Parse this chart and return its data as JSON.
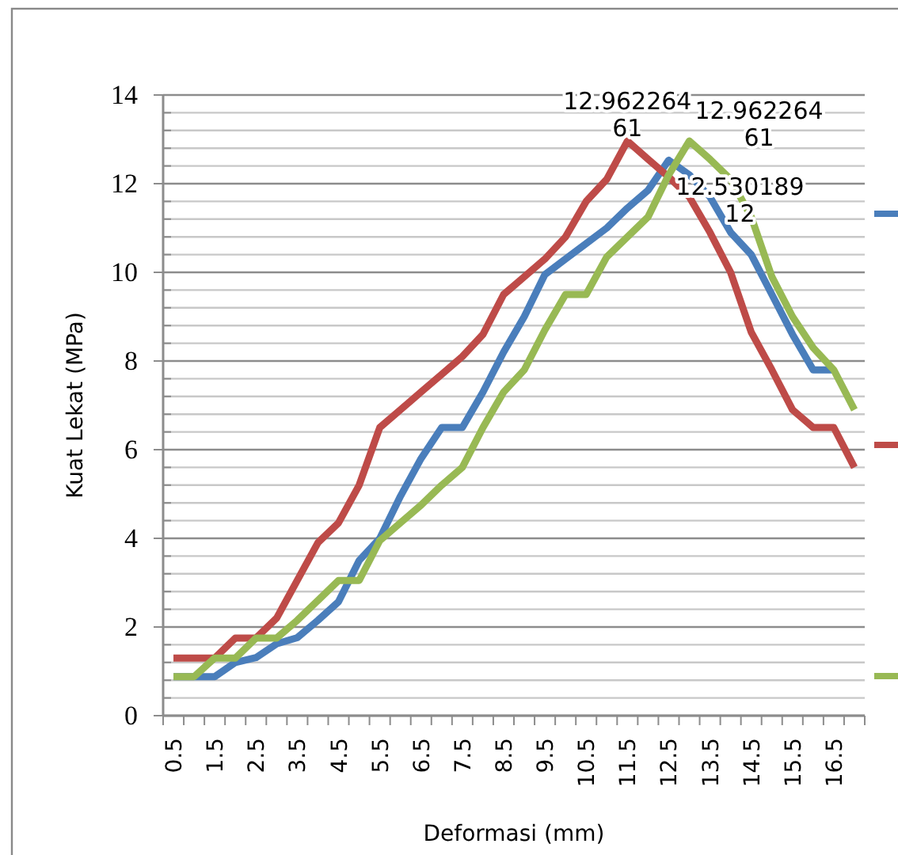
{
  "chart_data": {
    "type": "line",
    "xlabel": "Deformasi (mm)",
    "ylabel": "Kuat Lekat (MPa)",
    "categories": [
      "0.5",
      null,
      "1.5",
      null,
      "2.5",
      null,
      "3.5",
      null,
      "4.5",
      null,
      "5.5",
      null,
      "6.5",
      null,
      "7.5",
      null,
      "8.5",
      null,
      "9.5",
      null,
      "10.5",
      null,
      "11.5",
      null,
      "12.5",
      null,
      "13.5",
      null,
      "14.5",
      null,
      "15.5",
      null,
      "16.5",
      null
    ],
    "ylim": [
      0,
      14
    ],
    "yticks": [
      0,
      {
        "value": 0.4,
        "label": null
      },
      {
        "value": 0.8,
        "label": null
      },
      {
        "value": 1.2,
        "label": null
      },
      {
        "value": 1.6,
        "label": null
      },
      2,
      {
        "value": 2.4,
        "label": null
      },
      {
        "value": 2.8,
        "label": null
      },
      {
        "value": 3.2,
        "label": null
      },
      {
        "value": 3.6,
        "label": null
      },
      4,
      {
        "value": 4.4,
        "label": null
      },
      {
        "value": 4.8,
        "label": null
      },
      {
        "value": 5.2,
        "label": null
      },
      {
        "value": 5.6,
        "label": null
      },
      6,
      {
        "value": 6.4,
        "label": null
      },
      {
        "value": 6.8,
        "label": null
      },
      {
        "value": 7.2,
        "label": null
      },
      {
        "value": 7.6,
        "label": null
      },
      8,
      {
        "value": 8.4,
        "label": null
      },
      {
        "value": 8.8,
        "label": null
      },
      {
        "value": 9.2,
        "label": null
      },
      {
        "value": 9.6,
        "label": null
      },
      10,
      {
        "value": 10.4,
        "label": null
      },
      {
        "value": 10.8,
        "label": null
      },
      {
        "value": 11.2,
        "label": null
      },
      {
        "value": 11.6,
        "label": null
      },
      12,
      {
        "value": 12.4,
        "label": null
      },
      {
        "value": 12.8,
        "label": null
      },
      {
        "value": 13.2,
        "label": null
      },
      {
        "value": 13.6,
        "label": null
      },
      14
    ],
    "grid": "y",
    "line_style": "solid",
    "marker": "none",
    "series": [
      {
        "color": "#4a7ebb",
        "values": [
          0.88,
          0.88,
          0.88,
          1.2,
          1.31,
          1.62,
          1.76,
          2.15,
          2.57,
          3.5,
          4.0,
          4.95,
          5.8,
          6.5,
          6.5,
          7.3,
          8.2,
          9.0,
          9.95,
          10.3,
          10.65,
          11.0,
          11.45,
          11.85,
          12.53018912,
          12.2,
          11.7,
          10.9,
          10.4,
          9.5,
          8.6,
          7.8,
          7.8,
          null
        ],
        "value_labels": [
          null,
          null,
          null,
          null,
          null,
          null,
          null,
          null,
          null,
          null,
          null,
          null,
          null,
          null,
          null,
          null,
          null,
          null,
          null,
          null,
          null,
          null,
          null,
          null,
          "12.53018912",
          null,
          null,
          null,
          null,
          null,
          null,
          null,
          null,
          null
        ]
      },
      {
        "color": "#be4b48",
        "values": [
          1.3,
          1.3,
          1.3,
          1.75,
          1.75,
          2.2,
          3.05,
          3.9,
          4.35,
          5.2,
          6.5,
          6.9,
          7.3,
          7.7,
          8.1,
          8.6,
          9.5,
          9.9,
          10.3,
          10.8,
          11.6,
          12.1,
          12.96226461,
          12.55,
          12.15,
          11.7,
          10.9,
          10.0,
          8.65,
          7.8,
          6.9,
          6.5,
          6.5,
          5.6
        ],
        "value_labels": [
          null,
          null,
          null,
          null,
          null,
          null,
          null,
          null,
          null,
          null,
          null,
          null,
          null,
          null,
          null,
          null,
          null,
          null,
          null,
          null,
          null,
          null,
          "12.96226461",
          null,
          null,
          null,
          null,
          null,
          null,
          null,
          null,
          null,
          null,
          null
        ]
      },
      {
        "color": "#98b954",
        "values": [
          0.88,
          0.88,
          1.3,
          1.3,
          1.75,
          1.75,
          2.15,
          2.6,
          3.05,
          3.05,
          3.95,
          4.35,
          4.75,
          5.2,
          5.6,
          6.5,
          7.3,
          7.8,
          8.7,
          9.5,
          9.5,
          10.35,
          10.8,
          11.25,
          12.2,
          12.96226461,
          12.55,
          12.1,
          11.25,
          9.9,
          9.0,
          8.3,
          7.8,
          6.9
        ],
        "value_labels": [
          null,
          null,
          null,
          null,
          null,
          null,
          null,
          null,
          null,
          null,
          null,
          null,
          null,
          null,
          null,
          null,
          null,
          null,
          null,
          null,
          null,
          null,
          null,
          null,
          null,
          "12.96226461",
          null,
          null,
          null,
          null,
          null,
          null,
          null,
          null
        ]
      }
    ]
  }
}
